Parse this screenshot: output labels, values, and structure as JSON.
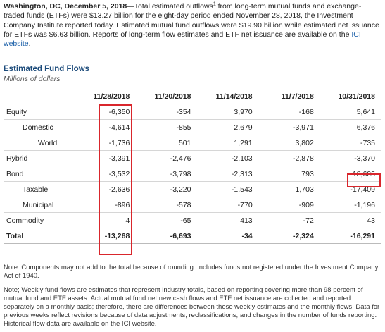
{
  "intro": {
    "dateline": "Washington, DC, December 5, 2018",
    "text1": "—Total estimated outflows",
    "footnote_mark": "1",
    "text2": " from long-term mutual funds and exchange-traded funds (ETFs) were $13.27 billion for the eight-day period ended November 28, 2018, the Investment Company Institute reported today. Estimated mutual fund outflows were $19.90 billion while estimated net issuance for ETFs was $6.63 billion. Reports of long-term flow estimates and ETF net issuance are available on the ",
    "link_text": "ICI website",
    "text3": "."
  },
  "table": {
    "title": "Estimated Fund Flows",
    "units": "Millions of dollars",
    "columns": [
      "11/28/2018",
      "11/20/2018",
      "11/14/2018",
      "11/7/2018",
      "10/31/2018"
    ],
    "rows": [
      {
        "label": "Equity",
        "values": [
          "-6,350",
          "-354",
          "3,970",
          "-168",
          "5,641"
        ]
      },
      {
        "label": "Domestic",
        "values": [
          "-4,614",
          "-855",
          "2,679",
          "-3,971",
          "6,376"
        ]
      },
      {
        "label": "World",
        "values": [
          "-1,736",
          "501",
          "1,291",
          "3,802",
          "-735"
        ]
      },
      {
        "label": "Hybrid",
        "values": [
          "-3,391",
          "-2,476",
          "-2,103",
          "-2,878",
          "-3,370"
        ]
      },
      {
        "label": "Bond",
        "values": [
          "-3,532",
          "-3,798",
          "-2,313",
          "793",
          "-18,605"
        ]
      },
      {
        "label": "Taxable",
        "values": [
          "-2,636",
          "-3,220",
          "-1,543",
          "1,703",
          "-17,409"
        ]
      },
      {
        "label": "Municipal",
        "values": [
          "-896",
          "-578",
          "-770",
          "-909",
          "-1,196"
        ]
      },
      {
        "label": "Commodity",
        "values": [
          "4",
          "-65",
          "413",
          "-72",
          "43"
        ]
      },
      {
        "label": "Total",
        "values": [
          "-13,268",
          "-6,693",
          "-34",
          "-2,324",
          "-16,291"
        ]
      }
    ]
  },
  "notes": {
    "note1": "Note: Components may not add to the total because of rounding. Includes funds not registered under the Investment Company Act of 1940.",
    "note2": "Note; Weekly fund flows are estimates that represent industry totals, based on reporting covering more than 98 percent of mutual fund and ETF assets. Actual mutual fund net new cash flows and ETF net issuance are collected and reported separately on a monthly basis; therefore, there are differences between these weekly estimates and the monthly flows. Data for previous weeks reflect revisions because of data adjustments, reclassifications, and changes in the number of funds reporting. Historical flow data are available on the ICI website."
  },
  "colors": {
    "highlight": "#d9262c",
    "link": "#1a5fa8",
    "heading": "#1b4a7a"
  }
}
